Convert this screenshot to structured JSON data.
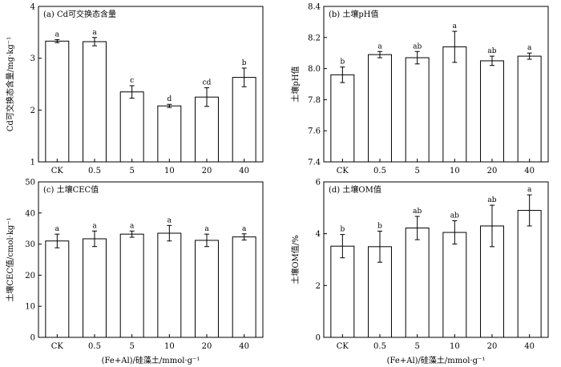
{
  "chart_data": [
    {
      "id": "a",
      "type": "bar",
      "title": "(a) Cd可交换态含量",
      "ylabel": "Cd可交换态含量/mg·kg⁻¹",
      "xlabel": "",
      "categories": [
        "CK",
        "0.5",
        "5",
        "10",
        "20",
        "40"
      ],
      "values": [
        3.33,
        3.32,
        2.35,
        2.08,
        2.25,
        2.63
      ],
      "errors": [
        0.03,
        0.08,
        0.12,
        0.03,
        0.18,
        0.18
      ],
      "sig": [
        "a",
        "a",
        "c",
        "d",
        "cd",
        "b"
      ],
      "ylim": [
        1,
        4
      ],
      "yticks": [
        "1",
        "2",
        "3",
        "4"
      ],
      "ytick_values": [
        1,
        2,
        3,
        4
      ]
    },
    {
      "id": "b",
      "type": "bar",
      "title": "(b) 土壤pH值",
      "ylabel": "土壤pH值",
      "xlabel": "",
      "categories": [
        "CK",
        "0.5",
        "5",
        "10",
        "20",
        "40"
      ],
      "values": [
        7.96,
        8.09,
        8.07,
        8.14,
        8.05,
        8.08
      ],
      "errors": [
        0.05,
        0.02,
        0.04,
        0.1,
        0.03,
        0.02
      ],
      "sig": [
        "b",
        "a",
        "ab",
        "a",
        "ab",
        "a"
      ],
      "ylim": [
        7.4,
        8.4
      ],
      "yticks": [
        "7.4",
        "7.6",
        "7.8",
        "8.0",
        "8.2",
        "8.4"
      ],
      "ytick_values": [
        7.4,
        7.6,
        7.8,
        8.0,
        8.2,
        8.4
      ]
    },
    {
      "id": "c",
      "type": "bar",
      "title": "(c) 土壤CEC值",
      "ylabel": "土壤CEC值/cmol·kg⁻¹",
      "xlabel": "(Fe+Al)/硅藻土/mmol·g⁻¹",
      "categories": [
        "CK",
        "0.5",
        "5",
        "10",
        "20",
        "40"
      ],
      "values": [
        31.0,
        31.7,
        33.2,
        33.5,
        31.2,
        32.3
      ],
      "errors": [
        2.2,
        2.5,
        1.0,
        2.5,
        2.0,
        1.0
      ],
      "sig": [
        "a",
        "a",
        "a",
        "a",
        "a",
        "a"
      ],
      "ylim": [
        0,
        50
      ],
      "yticks": [
        "0",
        "10",
        "20",
        "30",
        "40",
        "50"
      ],
      "ytick_values": [
        0,
        10,
        20,
        30,
        40,
        50
      ]
    },
    {
      "id": "d",
      "type": "bar",
      "title": "(d) 土壤OM值",
      "ylabel": "土壤OM值/%",
      "xlabel": "(Fe+Al)/硅藻土/mmol·g⁻¹",
      "categories": [
        "CK",
        "0.5",
        "5",
        "10",
        "20",
        "40"
      ],
      "values": [
        3.52,
        3.5,
        4.22,
        4.05,
        4.3,
        4.9
      ],
      "errors": [
        0.45,
        0.6,
        0.45,
        0.45,
        0.8,
        0.6
      ],
      "sig": [
        "b",
        "b",
        "ab",
        "ab",
        "ab",
        "a"
      ],
      "ylim": [
        0,
        6
      ],
      "yticks": [
        "0",
        "2",
        "4",
        "6"
      ],
      "ytick_values": [
        0,
        2,
        4,
        6
      ]
    }
  ]
}
